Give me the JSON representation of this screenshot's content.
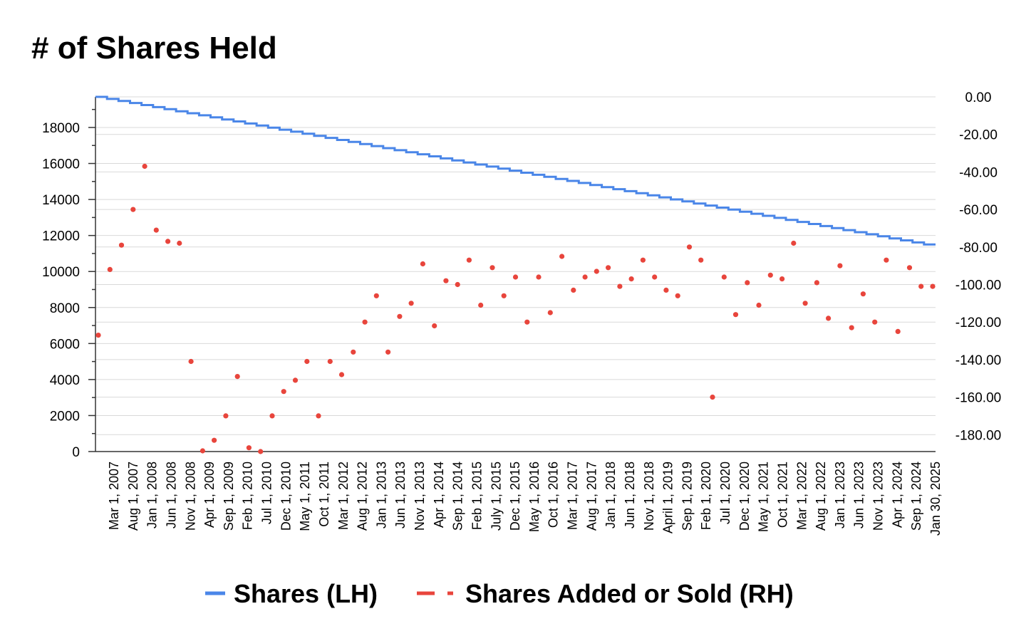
{
  "chart_data": {
    "type": "line",
    "title": "# of Shares Held",
    "x_labels": [
      "Mar 1, 2007",
      "Aug 1, 2007",
      "Jan 1, 2008",
      "Jun 1, 2008",
      "Nov 1, 2008",
      "Apr 1, 2009",
      "Sep 1, 2009",
      "Feb 1, 2010",
      "Jul 1, 2010",
      "Dec 1, 2010",
      "May 1, 2011",
      "Oct 1, 2011",
      "Mar 1, 2012",
      "Aug 1, 2012",
      "Jan 1, 2013",
      "Jun 1, 2013",
      "Nov 1, 2013",
      "Apr 1, 2014",
      "Sep 1, 2014",
      "Feb 1, 2015",
      "July 1, 2015",
      "Dec 1, 2015",
      "May 1, 2016",
      "Oct 1, 2016",
      "Mar 1, 2017",
      "Aug 1, 2017",
      "Jan 1, 2018",
      "Jun 1, 2018",
      "Nov 1, 2018",
      "April 1, 2019",
      "Sep 1, 2019",
      "Feb 1, 2020",
      "Jul 1, 2020",
      "Dec 1, 2020",
      "May 1, 2021",
      "Oct 1, 2021",
      "Mar 1, 2022",
      "Aug 1, 2022",
      "Jan 1, 2023",
      "Jun 1, 2023",
      "Nov 1, 2023",
      "Apr 1, 2024",
      "Sep 1, 2024",
      "Jan 30, 2025"
    ],
    "y_left": {
      "ticks": [
        "0",
        "2000",
        "4000",
        "6000",
        "8000",
        "10000",
        "12000",
        "14000",
        "16000",
        "18000"
      ],
      "ylim": [
        0,
        19700
      ]
    },
    "y_right": {
      "ticks": [
        "0.00",
        "-20.00",
        "-40.00",
        "-60.00",
        "-80.00",
        "-100.00",
        "-120.00",
        "-140.00",
        "-160.00",
        "-180.00"
      ],
      "ylim": [
        -189,
        0
      ]
    },
    "grid": true,
    "legend_position": "bottom",
    "series": [
      {
        "name": "Shares (LH)",
        "axis": "left",
        "style": "line",
        "color": "#4a86e8",
        "start": 19700,
        "end": 11500,
        "steps": 73
      },
      {
        "name": "Shares Added or Sold (RH)",
        "axis": "right",
        "style": "scatter",
        "color": "#e8453c",
        "values": [
          -127,
          -92,
          -79,
          -60,
          -37,
          -71,
          -77,
          -78,
          -141,
          -190,
          -183,
          -170,
          -149,
          -187,
          -189,
          -170,
          -157,
          -151,
          -141,
          -170,
          -141,
          -148,
          -136,
          -120,
          -106,
          -136,
          -117,
          -110,
          -89,
          -122,
          -98,
          -100,
          -87,
          -111,
          -91,
          -106,
          -96,
          -120,
          -96,
          -115,
          -85,
          -103,
          -96,
          -93,
          -91,
          -101,
          -97,
          -87,
          -96,
          -103,
          -106,
          -80,
          -87,
          -160,
          -96,
          -116,
          -99,
          -111,
          -95,
          -97,
          -78,
          -110,
          -99,
          -118,
          -90,
          -123,
          -105,
          -120,
          -87,
          -125,
          -91,
          -101,
          -101
        ]
      }
    ]
  }
}
